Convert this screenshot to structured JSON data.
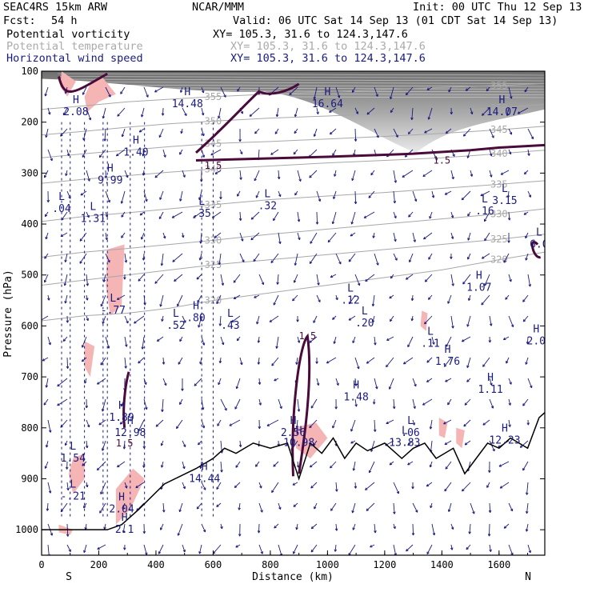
{
  "header": {
    "model": "SEAC4RS 15km ARW",
    "org": "NCAR/MMM",
    "init": "Init: 00 UTC Thu 12 Sep 13",
    "fcst_label": "Fcst:",
    "fcst_value": "54 h",
    "valid": "Valid: 06 UTC Sat 14 Sep 13 (01 CDT Sat 14 Sep 13)",
    "fields": [
      {
        "name": "Potential vorticity",
        "xy": "XY= 105.3, 31.6 to 124.3,147.6",
        "color": "#000000"
      },
      {
        "name": "Potential temperature",
        "xy": "XY= 105.3, 31.6 to 124.3,147.6",
        "color": "#aaaaaa"
      },
      {
        "name": "Horizontal wind speed",
        "xy": "XY= 105.3, 31.6 to 124.3,147.6",
        "color": "#000080"
      }
    ]
  },
  "chart_data": {
    "type": "cross-section",
    "xlabel": "Distance (km)",
    "ylabel": "Pressure (hPa)",
    "xlim": [
      0,
      1760
    ],
    "ylim": [
      1050,
      100
    ],
    "x_ticks": [
      "0",
      "200",
      "400",
      "600",
      "800",
      "1000",
      "1200",
      "1400",
      "1600"
    ],
    "y_ticks": [
      "100",
      "200",
      "300",
      "400",
      "500",
      "600",
      "700",
      "800",
      "900",
      "1000"
    ],
    "left_end_label": "S",
    "right_end_label": "N",
    "theta_contours": [
      {
        "label": "320",
        "pts": [
          [
            0,
            590
          ],
          [
            150,
            580
          ],
          [
            300,
            575
          ],
          [
            450,
            565
          ],
          [
            600,
            550
          ],
          [
            800,
            535
          ],
          [
            1000,
            520
          ],
          [
            1200,
            505
          ],
          [
            1400,
            490
          ],
          [
            1600,
            470
          ],
          [
            1760,
            455
          ]
        ]
      },
      {
        "label": "325",
        "pts": [
          [
            0,
            520
          ],
          [
            150,
            510
          ],
          [
            300,
            500
          ],
          [
            450,
            490
          ],
          [
            600,
            480
          ],
          [
            800,
            470
          ],
          [
            1000,
            460
          ],
          [
            1200,
            450
          ],
          [
            1400,
            440
          ],
          [
            1600,
            430
          ],
          [
            1760,
            420
          ]
        ]
      },
      {
        "label": "330",
        "pts": [
          [
            0,
            465
          ],
          [
            150,
            455
          ],
          [
            300,
            448
          ],
          [
            450,
            440
          ],
          [
            600,
            432
          ],
          [
            800,
            420
          ],
          [
            1000,
            410
          ],
          [
            1200,
            400
          ],
          [
            1400,
            390
          ],
          [
            1600,
            380
          ],
          [
            1760,
            370
          ]
        ]
      },
      {
        "label": "335",
        "pts": [
          [
            0,
            395
          ],
          [
            150,
            385
          ],
          [
            300,
            378
          ],
          [
            450,
            370
          ],
          [
            600,
            362
          ],
          [
            800,
            352
          ],
          [
            1000,
            345
          ],
          [
            1200,
            338
          ],
          [
            1400,
            330
          ],
          [
            1600,
            322
          ],
          [
            1760,
            315
          ]
        ]
      },
      {
        "label": "340",
        "pts": [
          [
            0,
            320
          ],
          [
            150,
            312
          ],
          [
            300,
            305
          ],
          [
            450,
            298
          ],
          [
            600,
            292
          ],
          [
            800,
            286
          ],
          [
            1000,
            280
          ],
          [
            1200,
            275
          ],
          [
            1400,
            270
          ],
          [
            1600,
            262
          ],
          [
            1760,
            255
          ]
        ]
      },
      {
        "label": "345",
        "pts": [
          [
            0,
            270
          ],
          [
            150,
            262
          ],
          [
            300,
            255
          ],
          [
            450,
            248
          ],
          [
            600,
            242
          ],
          [
            800,
            238
          ],
          [
            1000,
            233
          ],
          [
            1200,
            228
          ],
          [
            1400,
            222
          ],
          [
            1600,
            215
          ],
          [
            1760,
            208
          ]
        ]
      },
      {
        "label": "350",
        "pts": [
          [
            0,
            225
          ],
          [
            150,
            218
          ],
          [
            300,
            210
          ],
          [
            450,
            203
          ],
          [
            600,
            198
          ],
          [
            800,
            192
          ],
          [
            1000,
            188
          ],
          [
            1200,
            183
          ],
          [
            1400,
            178
          ],
          [
            1600,
            172
          ],
          [
            1760,
            165
          ]
        ]
      },
      {
        "label": "355",
        "pts": [
          [
            0,
            175
          ],
          [
            150,
            168
          ],
          [
            300,
            160
          ],
          [
            450,
            155
          ],
          [
            600,
            150
          ],
          [
            800,
            145
          ],
          [
            1000,
            140
          ],
          [
            1200,
            136
          ],
          [
            1400,
            132
          ],
          [
            1600,
            128
          ],
          [
            1760,
            124
          ]
        ]
      }
    ],
    "pv_label": "1.5",
    "markers": [
      {
        "t": "H",
        "v": "2.08",
        "x": 120,
        "p": 175
      },
      {
        "t": "H",
        "v": "1.40",
        "x": 330,
        "p": 255
      },
      {
        "t": "H",
        "v": "9.99",
        "x": 240,
        "p": 310
      },
      {
        "t": "H",
        "v": "14.48",
        "x": 510,
        "p": 160
      },
      {
        "t": "H",
        "v": "16.64",
        "x": 1000,
        "p": 160
      },
      {
        "t": "H",
        "v": "14.07",
        "x": 1610,
        "p": 175
      },
      {
        "t": "L",
        "v": ".04",
        "x": 70,
        "p": 365
      },
      {
        "t": "L",
        "v": "1.31",
        "x": 180,
        "p": 385
      },
      {
        "t": "L",
        "v": ".35",
        "x": 560,
        "p": 375
      },
      {
        "t": "L",
        "v": ".32",
        "x": 790,
        "p": 360
      },
      {
        "t": "L",
        "v": "3.15",
        "x": 1620,
        "p": 350
      },
      {
        "t": "L",
        "v": ".16",
        "x": 1550,
        "p": 370
      },
      {
        "t": "L",
        "v": "6.0",
        "x": 1740,
        "p": 435
      },
      {
        "t": "H",
        "v": "1.07",
        "x": 1530,
        "p": 520
      },
      {
        "t": "L",
        "v": "-.77",
        "x": 250,
        "p": 565
      },
      {
        "t": "L",
        "v": ".52",
        "x": 470,
        "p": 595
      },
      {
        "t": "H",
        "v": ".80",
        "x": 540,
        "p": 580
      },
      {
        "t": "L",
        "v": ".43",
        "x": 660,
        "p": 595
      },
      {
        "t": "L",
        "v": ".12",
        "x": 1080,
        "p": 545
      },
      {
        "t": "L",
        "v": ".20",
        "x": 1130,
        "p": 590
      },
      {
        "t": "H",
        "v": "2.0",
        "x": 1730,
        "p": 625
      },
      {
        "t": "L",
        "v": ".11",
        "x": 1360,
        "p": 630
      },
      {
        "t": "H",
        "v": "1.76",
        "x": 1420,
        "p": 665
      },
      {
        "t": "H",
        "v": "1.11",
        "x": 1570,
        "p": 720
      },
      {
        "t": "H",
        "v": "1.48",
        "x": 1100,
        "p": 735
      },
      {
        "t": "H",
        "v": "1.89",
        "x": 280,
        "p": 775
      },
      {
        "t": "H",
        "v": "12.98",
        "x": 310,
        "p": 805
      },
      {
        "t": "H",
        "v": "2.56",
        "x": 880,
        "p": 805
      },
      {
        "t": "H",
        "v": "10.98",
        "x": 900,
        "p": 825
      },
      {
        "t": "L",
        "v": ".06",
        "x": 1290,
        "p": 805
      },
      {
        "t": "L",
        "v": "13.83",
        "x": 1270,
        "p": 825
      },
      {
        "t": "H",
        "v": "12.23",
        "x": 1620,
        "p": 820
      },
      {
        "t": "L",
        "v": "1.54",
        "x": 110,
        "p": 855
      },
      {
        "t": "H",
        "v": "14.44",
        "x": 570,
        "p": 895
      },
      {
        "t": "L",
        "v": "-.21",
        "x": 110,
        "p": 930
      },
      {
        "t": "H",
        "v": "2.04",
        "x": 280,
        "p": 955
      },
      {
        "t": "H",
        "v": "2.1",
        "x": 290,
        "p": 995
      }
    ]
  }
}
